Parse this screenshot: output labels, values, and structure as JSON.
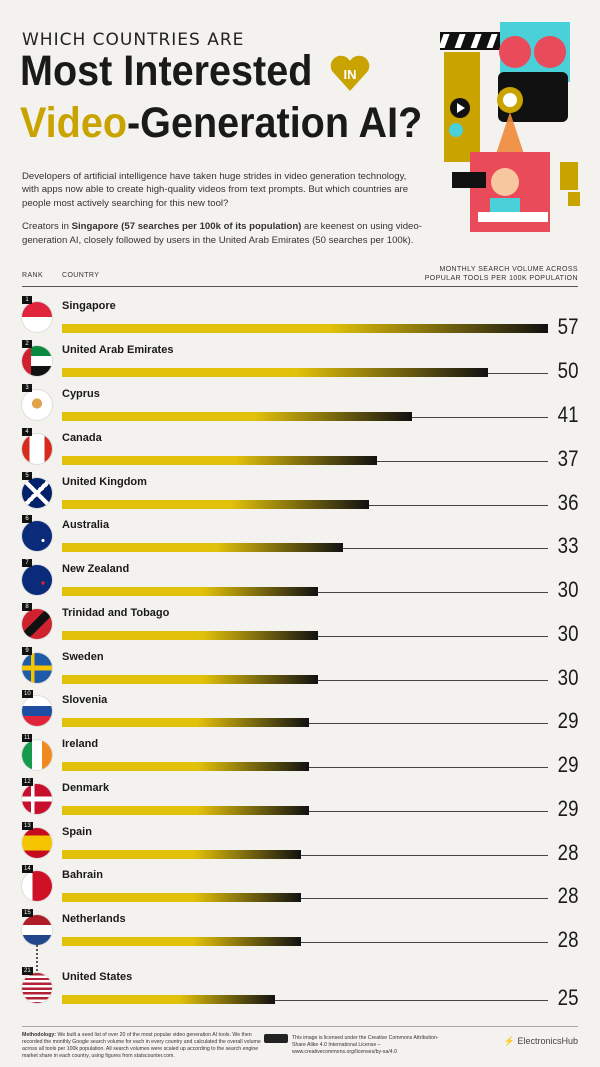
{
  "header": {
    "kicker": "WHICH COUNTRIES ARE",
    "title_line1": "Most Interested",
    "in_badge": "IN",
    "title_line2_highlight": "Video",
    "title_line2_rest": "-Generation AI?"
  },
  "intro": {
    "p1": "Developers of artificial intelligence have taken huge strides in video generation technology, with apps now able to create high-quality videos from text prompts. But which countries are people most actively searching for this new tool?",
    "p2_prefix": "Creators in ",
    "p2_bold": "Singapore (57 searches per 100k of its population)",
    "p2_suffix": " are keenest on using video-generation AI, closely followed by users in the United Arab Emirates (50 searches per 100k)."
  },
  "columns": {
    "rank": "RANK",
    "country": "COUNTRY",
    "volume_line1": "MONTHLY SEARCH VOLUME ACROSS",
    "volume_line2": "POPULAR TOOLS PER 100K POPULATION"
  },
  "chart_data": {
    "type": "bar",
    "orientation": "horizontal",
    "categories": [
      "Singapore",
      "United Arab Emirates",
      "Cyprus",
      "Canada",
      "United Kingdom",
      "Australia",
      "New Zealand",
      "Trinidad and Tobago",
      "Sweden",
      "Slovenia",
      "Ireland",
      "Denmark",
      "Spain",
      "Bahrain",
      "Netherlands",
      "United States"
    ],
    "ranks": [
      "1",
      "2",
      "3",
      "4",
      "5",
      "6",
      "7",
      "8",
      "9",
      "10",
      "11",
      "12",
      "13",
      "14",
      "15",
      "21"
    ],
    "values": [
      57,
      50,
      41,
      37,
      36,
      33,
      30,
      30,
      30,
      29,
      29,
      29,
      28,
      28,
      28,
      25
    ],
    "xlim": [
      0,
      57
    ],
    "colors": {
      "bar_start": "#e2c10b",
      "bar_end": "#111111"
    }
  },
  "footer": {
    "methodology_label": "Methodology:",
    "methodology_text": "We built a seed list of over 20 of the most popular video generation AI tools. We then recorded the monthly Google search volume for each in every country and calculated the overall volume across all tools per 100k population. All search volumes were scaled up according to the search engine market share in each country, using figures from statscounter.com.",
    "license": "This image is licensed under the Creative Commons Attribution-Share Alike 4.0 International License – www.creativecommons.org/licenses/by-sa/4.0",
    "brand": "ElectronicsHub"
  },
  "colors": {
    "accent": "#c9a400",
    "background": "#f4f2ee"
  }
}
